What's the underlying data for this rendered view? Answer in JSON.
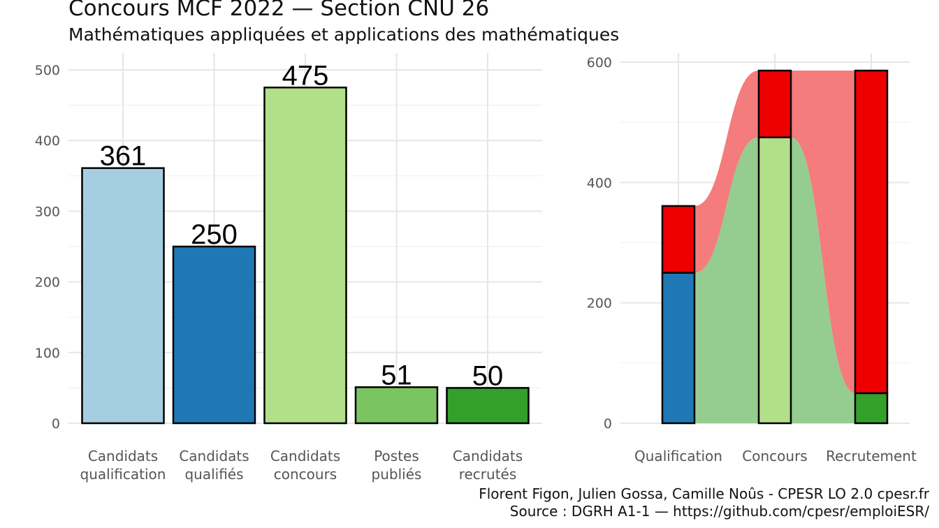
{
  "title": "Concours MCF  2022  —  Section CNU 26",
  "subtitle": "Mathématiques appliquées et applications des mathématiques",
  "caption": {
    "line1": "Florent Figon, Julien Gossa, Camille Noûs - CPESR LO 2.0 cpesr.fr",
    "line2": "Source : DGRH A1-1 — https://github.com/cpesr/emploiESR/"
  },
  "chart_data": [
    {
      "type": "bar",
      "categories": [
        [
          "Candidats",
          "qualification"
        ],
        [
          "Candidats",
          "qualifiés"
        ],
        [
          "Candidats",
          "concours"
        ],
        [
          "Postes",
          "publiés"
        ],
        [
          "Candidats",
          "recrutés"
        ]
      ],
      "values": [
        361,
        250,
        475,
        51,
        50
      ],
      "data_labels": [
        "361",
        "250",
        "475",
        "51",
        "50"
      ],
      "colors": [
        "#a6cee3",
        "#1f78b4",
        "#b2df8a",
        "#7ac462",
        "#33a02c"
      ],
      "ylim": [
        0,
        525
      ],
      "yticks": [
        0,
        100,
        200,
        300,
        400,
        500
      ],
      "grid": true
    },
    {
      "type": "bar",
      "stacked": true,
      "categories": [
        "Qualification",
        "Concours",
        "Recrutement"
      ],
      "series": [
        {
          "values": [
            250,
            475,
            50
          ],
          "colors": [
            "#1f78b4",
            "#b2df8a",
            "#33a02c"
          ]
        },
        {
          "values": [
            111,
            111,
            536
          ],
          "color": "#ee0000"
        }
      ],
      "flows": {
        "success_color": "#95cc90",
        "fail_color": "#f47c7c"
      },
      "ylim": [
        0,
        620
      ],
      "yticks": [
        0,
        200,
        400,
        600
      ],
      "grid": true
    }
  ]
}
